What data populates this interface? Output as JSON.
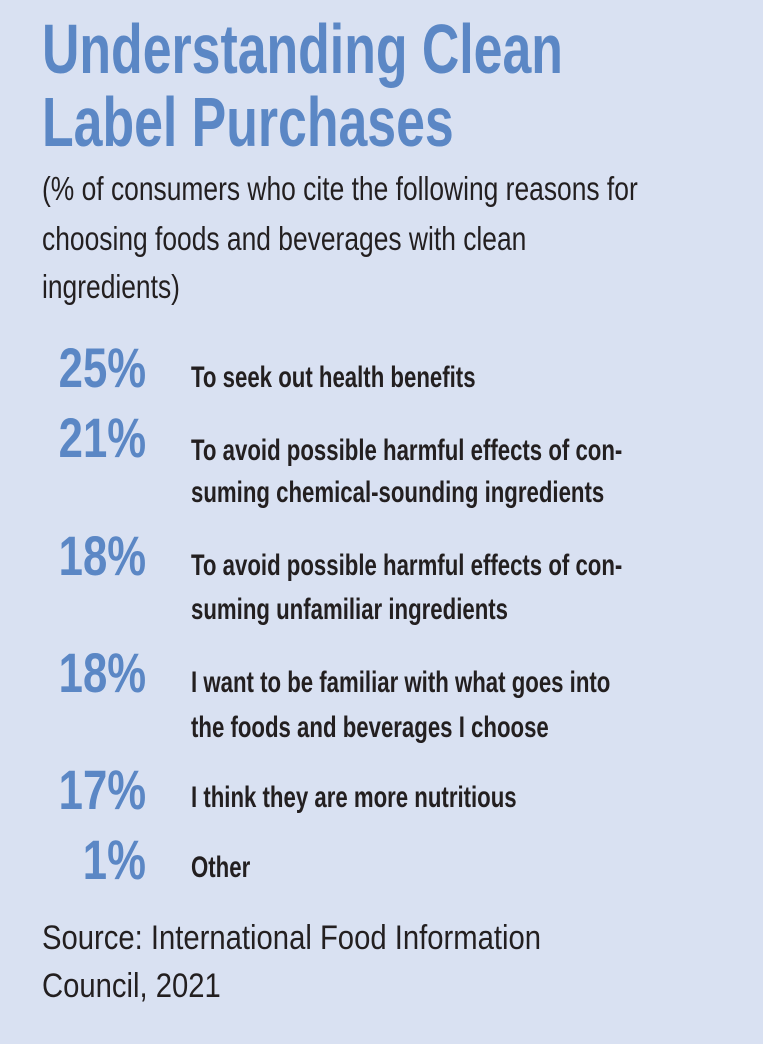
{
  "colors": {
    "background": "#d9e1f2",
    "accent": "#5b87c5",
    "text": "#231f20"
  },
  "chart_data": {
    "type": "table",
    "title_lines": [
      "Understanding Clean",
      "Label Purchases"
    ],
    "subtitle_lines": [
      "(% of consumers who cite the following reasons for",
      "choosing foods and beverages with clean",
      "ingredients)"
    ],
    "rows": [
      {
        "value_label": "25%",
        "value": 25,
        "label_lines": [
          "To seek out health benefits"
        ]
      },
      {
        "value_label": "21%",
        "value": 21,
        "label_lines": [
          "To avoid possible harmful effects of con-",
          "suming chemical-sounding ingredients"
        ]
      },
      {
        "value_label": "18%",
        "value": 18,
        "label_lines": [
          "To avoid possible harmful effects of con-",
          "suming unfamiliar ingredients"
        ]
      },
      {
        "value_label": "18%",
        "value": 18,
        "label_lines": [
          "I want to be familiar with what goes into",
          "the foods and beverages I choose"
        ]
      },
      {
        "value_label": "17%",
        "value": 17,
        "label_lines": [
          "I think they are more nutritious"
        ]
      },
      {
        "value_label": "1%",
        "value": 1,
        "label_lines": [
          "Other"
        ]
      }
    ],
    "source_lines": [
      "Source: International Food Information",
      "Council, 2021"
    ]
  }
}
